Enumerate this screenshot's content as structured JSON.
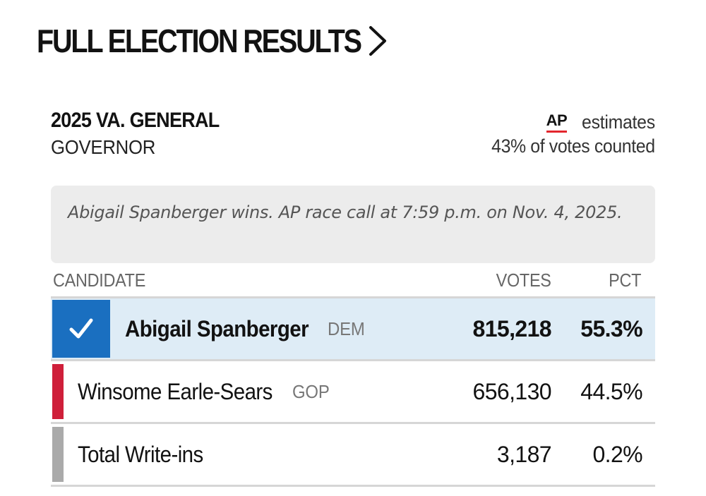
{
  "header": {
    "title": "FULL ELECTION RESULTS",
    "chevron_icon": "chevron-right-icon"
  },
  "race": {
    "name": "2025 VA. GENERAL",
    "office": "GOVERNOR"
  },
  "ap": {
    "logo_text": "AP",
    "estimates_label": "estimates",
    "votes_counted": "43% of votes counted",
    "logo_underline_color": "#e3262d"
  },
  "race_call": {
    "text": "Abigail Spanberger wins. AP race call at 7:59 p.m. on Nov. 4, 2025."
  },
  "table": {
    "headers": {
      "candidate": "CANDIDATE",
      "votes": "VOTES",
      "pct": "PCT"
    },
    "rows": [
      {
        "name": "Abigail Spanberger",
        "party": "DEM",
        "votes": "815,218",
        "pct": "55.3%",
        "winner": true,
        "color": "#1a6fc0",
        "icon": "checkmark-icon"
      },
      {
        "name": "Winsome Earle-Sears",
        "party": "GOP",
        "votes": "656,130",
        "pct": "44.5%",
        "winner": false,
        "color": "#cf1f3a"
      },
      {
        "name": "Total Write-ins",
        "party": "",
        "votes": "3,187",
        "pct": "0.2%",
        "winner": false,
        "color": "#aaaaaa"
      }
    ]
  }
}
